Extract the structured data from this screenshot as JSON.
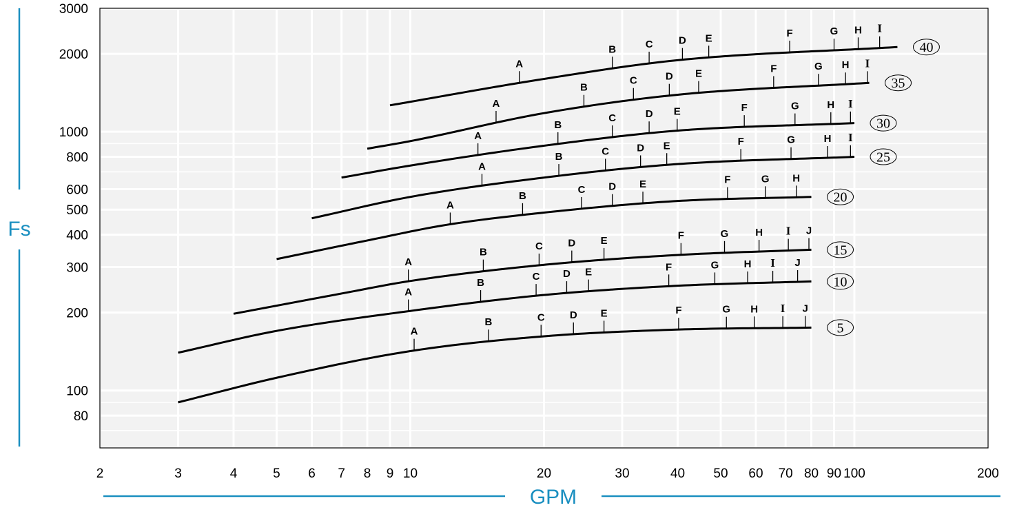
{
  "chart_data": {
    "type": "line",
    "xlabel": "GPM",
    "ylabel": "Fs",
    "x_scale": "log",
    "y_scale": "log",
    "xlim": [
      2,
      200
    ],
    "ylim": [
      60,
      3000
    ],
    "grid": true,
    "plot_background": "#f2f2f2",
    "grid_color": "#ffffff",
    "axis_title_color": "#1a8fc0",
    "x_ticks": [
      2,
      3,
      4,
      5,
      6,
      7,
      8,
      9,
      10,
      20,
      30,
      40,
      50,
      60,
      70,
      80,
      90,
      100,
      200
    ],
    "x_tick_labels": [
      "2",
      "3",
      "4",
      "5",
      "6",
      "7",
      "8",
      "9",
      "10",
      "20",
      "30",
      "40",
      "50",
      "60",
      "70",
      "80",
      "90",
      "100",
      "200"
    ],
    "y_ticks": [
      80,
      100,
      200,
      300,
      400,
      500,
      600,
      800,
      1000,
      2000,
      3000
    ],
    "y_tick_labels": [
      "80",
      "100",
      "200",
      "300",
      "400",
      "500",
      "600",
      "800",
      "1000",
      "2000",
      "3000"
    ],
    "series": [
      {
        "name": "5",
        "x_range": [
          3,
          80
        ],
        "points": [
          [
            3,
            90
          ],
          [
            5,
            112
          ],
          [
            10,
            142
          ],
          [
            20,
            162
          ],
          [
            40,
            172
          ],
          [
            80,
            175
          ]
        ],
        "markers": [
          {
            "label": "A",
            "x": 10.2
          },
          {
            "label": "B",
            "x": 15
          },
          {
            "label": "C",
            "x": 19.7
          },
          {
            "label": "D",
            "x": 23.3
          },
          {
            "label": "E",
            "x": 27.3
          },
          {
            "label": "F",
            "x": 40.2
          },
          {
            "label": "G",
            "x": 51.5
          },
          {
            "label": "H",
            "x": 59.5
          },
          {
            "label": "I",
            "x": 69
          },
          {
            "label": "J",
            "x": 77.5
          }
        ]
      },
      {
        "name": "10",
        "x_range": [
          3,
          80
        ],
        "points": [
          [
            3,
            140
          ],
          [
            5,
            170
          ],
          [
            10,
            203
          ],
          [
            20,
            234
          ],
          [
            40,
            254
          ],
          [
            80,
            264
          ]
        ],
        "markers": [
          {
            "label": "A",
            "x": 9.9
          },
          {
            "label": "B",
            "x": 14.4
          },
          {
            "label": "C",
            "x": 19.2
          },
          {
            "label": "D",
            "x": 22.5
          },
          {
            "label": "E",
            "x": 25.2
          },
          {
            "label": "F",
            "x": 38.2
          },
          {
            "label": "G",
            "x": 48.5
          },
          {
            "label": "H",
            "x": 57.5
          },
          {
            "label": "I",
            "x": 65.5
          },
          {
            "label": "J",
            "x": 74.5
          }
        ]
      },
      {
        "name": "15",
        "x_range": [
          4,
          80
        ],
        "points": [
          [
            4,
            198
          ],
          [
            7,
            237
          ],
          [
            10,
            265
          ],
          [
            20,
            306
          ],
          [
            40,
            334
          ],
          [
            80,
            350
          ]
        ],
        "markers": [
          {
            "label": "A",
            "x": 9.9
          },
          {
            "label": "B",
            "x": 14.6
          },
          {
            "label": "C",
            "x": 19.5
          },
          {
            "label": "D",
            "x": 23.1
          },
          {
            "label": "E",
            "x": 27.3
          },
          {
            "label": "F",
            "x": 40.7
          },
          {
            "label": "G",
            "x": 51
          },
          {
            "label": "H",
            "x": 61
          },
          {
            "label": "I",
            "x": 71
          },
          {
            "label": "J",
            "x": 79
          }
        ]
      },
      {
        "name": "20",
        "x_range": [
          5,
          80
        ],
        "points": [
          [
            5,
            322
          ],
          [
            8,
            380
          ],
          [
            12,
            436
          ],
          [
            20,
            487
          ],
          [
            40,
            540
          ],
          [
            80,
            560
          ]
        ],
        "markers": [
          {
            "label": "A",
            "x": 12.3
          },
          {
            "label": "B",
            "x": 17.9
          },
          {
            "label": "C",
            "x": 24.3
          },
          {
            "label": "D",
            "x": 28.5
          },
          {
            "label": "E",
            "x": 33.4
          },
          {
            "label": "F",
            "x": 51.8
          },
          {
            "label": "G",
            "x": 63
          },
          {
            "label": "H",
            "x": 74
          }
        ]
      },
      {
        "name": "25",
        "x_range": [
          6,
          100
        ],
        "points": [
          [
            6,
            463
          ],
          [
            10,
            560
          ],
          [
            20,
            665
          ],
          [
            40,
            750
          ],
          [
            100,
            800
          ]
        ],
        "markers": [
          {
            "label": "A",
            "x": 14.5
          },
          {
            "label": "B",
            "x": 21.6
          },
          {
            "label": "C",
            "x": 27.5
          },
          {
            "label": "D",
            "x": 33
          },
          {
            "label": "E",
            "x": 37.8
          },
          {
            "label": "F",
            "x": 55.5
          },
          {
            "label": "G",
            "x": 72
          },
          {
            "label": "H",
            "x": 87
          },
          {
            "label": "I",
            "x": 98
          }
        ]
      },
      {
        "name": "30",
        "x_range": [
          7,
          100
        ],
        "points": [
          [
            7,
            665
          ],
          [
            10,
            740
          ],
          [
            20,
            883
          ],
          [
            40,
            1010
          ],
          [
            100,
            1080
          ]
        ],
        "markers": [
          {
            "label": "A",
            "x": 14.2
          },
          {
            "label": "B",
            "x": 21.5
          },
          {
            "label": "C",
            "x": 28.5
          },
          {
            "label": "D",
            "x": 34.5
          },
          {
            "label": "E",
            "x": 39.9
          },
          {
            "label": "F",
            "x": 56.5
          },
          {
            "label": "G",
            "x": 73.5
          },
          {
            "label": "H",
            "x": 88.5
          },
          {
            "label": "I",
            "x": 98
          }
        ]
      },
      {
        "name": "35",
        "x_range": [
          8,
          108
        ],
        "points": [
          [
            8,
            860
          ],
          [
            10,
            920
          ],
          [
            20,
            1180
          ],
          [
            40,
            1390
          ],
          [
            108,
            1545
          ]
        ],
        "markers": [
          {
            "label": "A",
            "x": 15.6
          },
          {
            "label": "B",
            "x": 24.6
          },
          {
            "label": "C",
            "x": 31.8
          },
          {
            "label": "D",
            "x": 38.3
          },
          {
            "label": "E",
            "x": 44.6
          },
          {
            "label": "F",
            "x": 65.8
          },
          {
            "label": "G",
            "x": 83
          },
          {
            "label": "H",
            "x": 95.5
          },
          {
            "label": "I",
            "x": 107
          }
        ]
      },
      {
        "name": "40",
        "x_range": [
          9,
          125
        ],
        "points": [
          [
            9,
            1265
          ],
          [
            20,
            1600
          ],
          [
            40,
            1890
          ],
          [
            125,
            2125
          ]
        ],
        "markers": [
          {
            "label": "A",
            "x": 17.6
          },
          {
            "label": "B",
            "x": 28.5
          },
          {
            "label": "C",
            "x": 34.5
          },
          {
            "label": "D",
            "x": 41
          },
          {
            "label": "E",
            "x": 47
          },
          {
            "label": "F",
            "x": 71.5
          },
          {
            "label": "G",
            "x": 90
          },
          {
            "label": "H",
            "x": 102
          },
          {
            "label": "I",
            "x": 114
          }
        ]
      }
    ]
  }
}
